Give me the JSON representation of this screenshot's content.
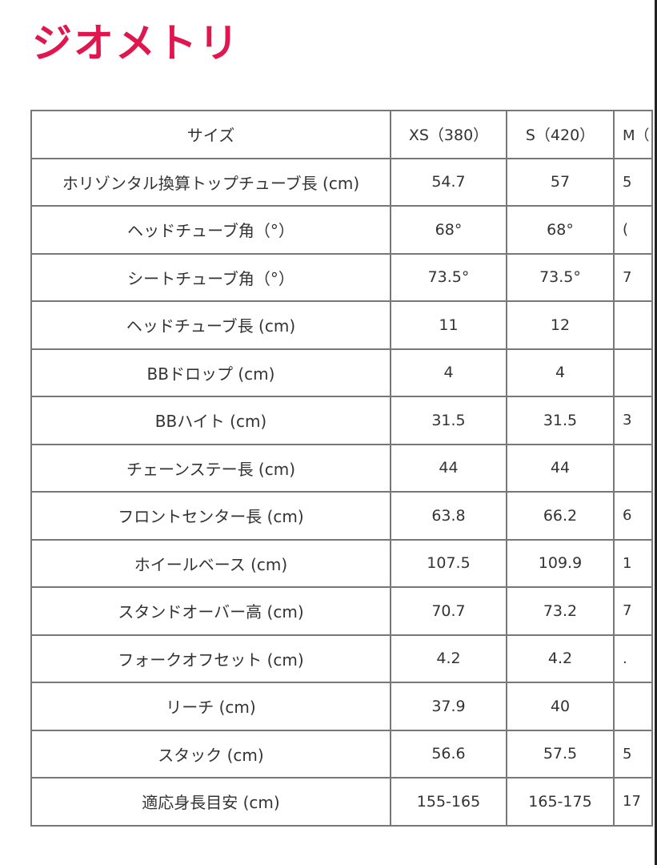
{
  "title": "ジオメトリ",
  "table": {
    "headers": [
      "サイズ",
      "XS（380）",
      "S（420）",
      "M（"
    ],
    "rows": [
      [
        "ホリゾンタル換算トップチューブ長 (cm)",
        "54.7",
        "57",
        "5"
      ],
      [
        "ヘッドチューブ角（°）",
        "68°",
        "68°",
        "("
      ],
      [
        "シートチューブ角（°）",
        "73.5°",
        "73.5°",
        "7"
      ],
      [
        "ヘッドチューブ長 (cm)",
        "11",
        "12",
        ""
      ],
      [
        "BBドロップ (cm)",
        "4",
        "4",
        ""
      ],
      [
        "BBハイト (cm)",
        "31.5",
        "31.5",
        "3"
      ],
      [
        "チェーンステー長 (cm)",
        "44",
        "44",
        ""
      ],
      [
        "フロントセンター長 (cm)",
        "63.8",
        "66.2",
        "6"
      ],
      [
        "ホイールベース (cm)",
        "107.5",
        "109.9",
        "1"
      ],
      [
        "スタンドオーバー高 (cm)",
        "70.7",
        "73.2",
        "7"
      ],
      [
        "フォークオフセット (cm)",
        "4.2",
        "4.2",
        "."
      ],
      [
        "リーチ (cm)",
        "37.9",
        "40",
        ""
      ],
      [
        "スタック (cm)",
        "56.6",
        "57.5",
        "5"
      ],
      [
        "適応身長目安 (cm)",
        "155-165",
        "165-175",
        "17"
      ]
    ]
  },
  "colors": {
    "title": "#e0174f",
    "border": "#777777"
  }
}
